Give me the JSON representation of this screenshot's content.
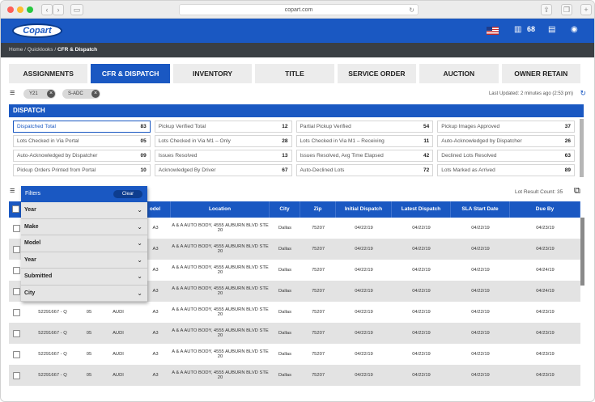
{
  "browser": {
    "url": "copart.com"
  },
  "header": {
    "logo": "Copart",
    "count": "68"
  },
  "breadcrumb": {
    "home": "Home",
    "quicklooks": "Quicklooks",
    "current": "CFR & Dispatch"
  },
  "tabs": [
    "ASSIGNMENTS",
    "CFR & DISPATCH",
    "INVENTORY",
    "TITLE",
    "SERVICE ORDER",
    "AUCTION",
    "OWNER RETAIN"
  ],
  "chips": [
    "Y21",
    "S-ADC"
  ],
  "last_updated": "Last Updated: 2 minutes ago (2:53 pm)",
  "dispatch": {
    "title": "DISPATCH",
    "cells": [
      {
        "label": "Dispatched Total",
        "value": "83"
      },
      {
        "label": "Pickup Verified Total",
        "value": "12"
      },
      {
        "label": "Partial Pickup Verified",
        "value": "54"
      },
      {
        "label": "Pickup Images Approved",
        "value": "37"
      },
      {
        "label": "Lots Checked in Via Portal",
        "value": "05"
      },
      {
        "label": "Lots Checked in Via M1 – Only",
        "value": "28"
      },
      {
        "label": "Lots Checked in Via M1 – Receiving",
        "value": "11"
      },
      {
        "label": "Auto-Acknowledged by Dispatcher",
        "value": "26"
      },
      {
        "label": "Auto-Acknowledged by Dispatcher",
        "value": "09"
      },
      {
        "label": "Issues Resolved",
        "value": "13"
      },
      {
        "label": "Issues Resolved, Avg Time Elapsed",
        "value": "42"
      },
      {
        "label": "Declined Lots Resolved",
        "value": "63"
      },
      {
        "label": "Pickup Orders Printed from Portal",
        "value": "10"
      },
      {
        "label": "Acknowledged By Driver",
        "value": "67"
      },
      {
        "label": "Auto-Declined Lots",
        "value": "72"
      },
      {
        "label": "Lots Marked as Arrived",
        "value": "89"
      }
    ]
  },
  "lot_result_count": "Lot Result Count: 35",
  "table": {
    "headers": [
      "",
      "",
      "",
      "",
      "odel",
      "Location",
      "City",
      "Zip",
      "Initial Dispatch",
      "Latest Dispatch",
      "SLA Start Date",
      "Due By"
    ],
    "rows": [
      [
        "",
        "",
        "",
        "A3",
        "A & A AUTO BODY, 4555 AUBURN BLVD STE 20",
        "Dallas",
        "75207",
        "04/22/19",
        "04/22/19",
        "04/22/19",
        "04/23/19"
      ],
      [
        "",
        "",
        "",
        "A3",
        "A & A AUTO BODY, 4555 AUBURN BLVD STE 20",
        "Dallas",
        "75207",
        "04/22/19",
        "04/22/19",
        "04/22/19",
        "04/23/19"
      ],
      [
        "",
        "",
        "",
        "A3",
        "A & A AUTO BODY, 4555 AUBURN BLVD STE 20",
        "Dallas",
        "75207",
        "04/22/19",
        "04/22/19",
        "04/22/19",
        "04/24/19"
      ],
      [
        "",
        "",
        "",
        "A3",
        "A & A AUTO BODY, 4555 AUBURN BLVD STE 20",
        "Dallas",
        "75207",
        "04/22/19",
        "04/22/19",
        "04/22/19",
        "04/24/19"
      ],
      [
        "52291667 - Q",
        "05",
        "AUDI",
        "A3",
        "A & A AUTO BODY, 4555 AUBURN BLVD STE 20",
        "Dallas",
        "75207",
        "04/22/19",
        "04/22/19",
        "04/22/19",
        "04/23/19"
      ],
      [
        "52291667 - Q",
        "05",
        "AUDI",
        "A3",
        "A & A AUTO BODY, 4555 AUBURN BLVD STE 20",
        "Dallas",
        "75207",
        "04/22/19",
        "04/22/19",
        "04/22/19",
        "04/23/19"
      ],
      [
        "52291667 - Q",
        "05",
        "AUDI",
        "A3",
        "A & A AUTO BODY, 4555 AUBURN BLVD STE 20",
        "Dallas",
        "75207",
        "04/22/19",
        "04/22/19",
        "04/22/19",
        "04/23/19"
      ],
      [
        "52291667 - Q",
        "05",
        "AUDI",
        "A3",
        "A & A AUTO BODY, 4555 AUBURN BLVD STE 20",
        "Dallas",
        "75207",
        "04/22/19",
        "04/22/19",
        "04/22/19",
        "04/23/19"
      ]
    ]
  },
  "filters": {
    "title": "Filters",
    "clear": "Clear",
    "items": [
      "Year",
      "Make",
      "Model",
      "Year",
      "Submitted",
      "City"
    ]
  }
}
